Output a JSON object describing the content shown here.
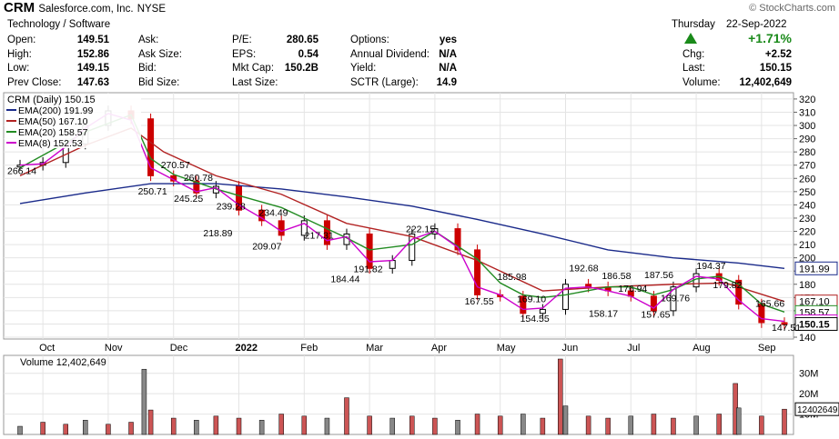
{
  "header": {
    "ticker": "CRM",
    "company": "Salesforce.com, Inc.",
    "exchange": "NYSE",
    "sector": "Technology / Software",
    "watermark": "© StockCharts.com",
    "day": "Thursday",
    "date": "22-Sep-2022",
    "change_pct": "+1.71%",
    "chg_label": "Chg:",
    "chg": "+2.52",
    "last_label": "Last:",
    "last": "150.15",
    "volume_label": "Volume:",
    "volume": "12,402,649",
    "quote": [
      {
        "label": "Open:",
        "value": "149.51"
      },
      {
        "label": "High:",
        "value": "152.86"
      },
      {
        "label": "Low:",
        "value": "149.15"
      },
      {
        "label": "Prev Close:",
        "value": "147.63"
      }
    ],
    "book": [
      {
        "label": "Ask:",
        "value": ""
      },
      {
        "label": "Ask Size:",
        "value": ""
      },
      {
        "label": "Bid:",
        "value": ""
      },
      {
        "label": "Bid Size:",
        "value": ""
      }
    ],
    "fundamentals": [
      {
        "label": "P/E:",
        "value": "280.65"
      },
      {
        "label": "EPS:",
        "value": "0.54"
      },
      {
        "label": "Mkt Cap:",
        "value": "150.2B"
      },
      {
        "label": "Last Size:",
        "value": ""
      }
    ],
    "extra": [
      {
        "label": "Options:",
        "value": "yes"
      },
      {
        "label": "Annual Dividend:",
        "value": "N/A"
      },
      {
        "label": "Yield:",
        "value": "N/A"
      },
      {
        "label": "SCTR (Large):",
        "value": "14.9"
      }
    ]
  },
  "chart_data": {
    "type": "line",
    "title": "CRM (Daily) 150.15",
    "up_color": "#000000",
    "down_color": "#cc0000",
    "price_axis": {
      "ticks": [
        140,
        150,
        160,
        170,
        180,
        190,
        200,
        210,
        220,
        230,
        240,
        250,
        260,
        270,
        280,
        290,
        300,
        310,
        320
      ],
      "ylim": [
        140,
        322
      ]
    },
    "x_months": [
      {
        "label": "Oct",
        "x": 1.35
      },
      {
        "label": "Nov",
        "x": 2.35
      },
      {
        "label": "Dec",
        "x": 3.35
      },
      {
        "label": "2022",
        "x": 4.35
      },
      {
        "label": "Feb",
        "x": 5.35
      },
      {
        "label": "Mar",
        "x": 6.35
      },
      {
        "label": "Apr",
        "x": 7.35
      },
      {
        "label": "May",
        "x": 8.35
      },
      {
        "label": "Jun",
        "x": 9.35
      },
      {
        "label": "Jul",
        "x": 10.35
      },
      {
        "label": "Aug",
        "x": 11.35
      },
      {
        "label": "Sep",
        "x": 12.35
      }
    ],
    "price": {
      "name": "CRM (Daily)",
      "x": [
        1.0,
        1.35,
        1.7,
        2.0,
        2.35,
        2.7,
        3.0,
        3.35,
        3.7,
        4.0,
        4.35,
        4.7,
        5.0,
        5.35,
        5.7,
        6.0,
        6.35,
        6.7,
        7.0,
        7.35,
        7.7,
        8.0,
        8.35,
        8.7,
        9.0,
        9.35,
        9.7,
        10.0,
        10.35,
        10.7,
        11.0,
        11.35,
        11.7,
        12.0,
        12.35,
        12.7
      ],
      "values": [
        270,
        272,
        286,
        300,
        311,
        305,
        262,
        258,
        249,
        254,
        236,
        228,
        217,
        228,
        210,
        218,
        192,
        198,
        218,
        222,
        206,
        172,
        171,
        158,
        161,
        180,
        178,
        175,
        171,
        160,
        178,
        188,
        183,
        165,
        151,
        150
      ]
    },
    "series": [
      {
        "name": "EMA(200)",
        "value_label": "191.99",
        "color": "#1a2a8a",
        "x": [
          1.0,
          2.0,
          3.0,
          4.0,
          5.0,
          6.0,
          7.0,
          8.0,
          9.0,
          10.0,
          11.0,
          12.0,
          12.7
        ],
        "values": [
          241,
          249,
          256,
          256,
          252,
          246,
          239,
          229,
          218,
          206,
          200,
          196,
          192
        ]
      },
      {
        "name": "EMA(50)",
        "value_label": "167.10",
        "color": "#b22222",
        "x": [
          1.0,
          2.0,
          2.7,
          3.2,
          4.0,
          5.0,
          6.0,
          7.0,
          8.0,
          9.0,
          10.0,
          11.0,
          11.8,
          12.7
        ],
        "values": [
          262,
          285,
          298,
          280,
          262,
          248,
          226,
          216,
          198,
          175,
          178,
          180,
          181,
          167
        ]
      },
      {
        "name": "EMA(20)",
        "value_label": "158.57",
        "color": "#228b22",
        "x": [
          1.0,
          2.0,
          2.7,
          3.0,
          3.35,
          4.0,
          4.35,
          5.0,
          5.35,
          6.0,
          6.35,
          7.0,
          7.35,
          8.0,
          8.35,
          8.7,
          9.0,
          9.35,
          10.0,
          10.35,
          10.7,
          11.0,
          11.35,
          11.7,
          12.0,
          12.35,
          12.7
        ],
        "values": [
          268,
          295,
          308,
          275,
          263,
          252,
          247,
          238,
          230,
          215,
          206,
          210,
          220,
          199,
          181,
          172,
          170,
          172,
          178,
          178,
          172,
          176,
          184,
          186,
          180,
          165,
          159
        ]
      },
      {
        "name": "EMA(8)",
        "value_label": "152.53",
        "color": "#cc00cc",
        "x": [
          1.0,
          1.35,
          1.7,
          2.0,
          2.35,
          2.7,
          3.0,
          3.35,
          3.7,
          4.0,
          4.35,
          4.7,
          5.0,
          5.35,
          5.7,
          6.0,
          6.35,
          6.7,
          7.0,
          7.35,
          7.7,
          8.0,
          8.35,
          8.7,
          9.0,
          9.35,
          9.7,
          10.0,
          10.35,
          10.7,
          11.0,
          11.35,
          11.7,
          12.0,
          12.35,
          12.7
        ],
        "values": [
          270,
          271,
          284,
          298,
          309,
          304,
          268,
          259,
          250,
          253,
          240,
          230,
          220,
          226,
          213,
          216,
          197,
          198,
          214,
          220,
          208,
          178,
          172,
          161,
          162,
          177,
          178,
          175,
          171,
          162,
          176,
          186,
          184,
          168,
          154,
          152
        ]
      }
    ],
    "annotations": [
      {
        "text": "266.14",
        "x": 1.0,
        "y": 266.14
      },
      {
        "text": "270.57",
        "x": 3.35,
        "y": 270.57
      },
      {
        "text": "250.71",
        "x": 3.0,
        "y": 250.71
      },
      {
        "text": "260.78",
        "x": 3.7,
        "y": 260.78
      },
      {
        "text": "245.25",
        "x": 3.55,
        "y": 245.25
      },
      {
        "text": "239.28",
        "x": 4.2,
        "y": 239.28
      },
      {
        "text": "218.89",
        "x": 4.0,
        "y": 218.89
      },
      {
        "text": "234.49",
        "x": 4.85,
        "y": 234.49
      },
      {
        "text": "209.07",
        "x": 4.75,
        "y": 209.07
      },
      {
        "text": "217.31",
        "x": 5.55,
        "y": 217.31
      },
      {
        "text": "184.44",
        "x": 5.95,
        "y": 184.44
      },
      {
        "text": "191.82",
        "x": 6.3,
        "y": 191.82
      },
      {
        "text": "222.15",
        "x": 7.1,
        "y": 222.15
      },
      {
        "text": "185.98",
        "x": 8.5,
        "y": 185.98
      },
      {
        "text": "169.10",
        "x": 8.8,
        "y": 169.1
      },
      {
        "text": "167.55",
        "x": 8.0,
        "y": 167.55
      },
      {
        "text": "154.55",
        "x": 8.85,
        "y": 154.55
      },
      {
        "text": "192.68",
        "x": 9.6,
        "y": 192.68
      },
      {
        "text": "186.58",
        "x": 10.1,
        "y": 186.58
      },
      {
        "text": "176.94",
        "x": 10.35,
        "y": 176.94
      },
      {
        "text": "158.17",
        "x": 9.9,
        "y": 158.17
      },
      {
        "text": "187.56",
        "x": 10.75,
        "y": 187.56
      },
      {
        "text": "157.65",
        "x": 10.7,
        "y": 157.65
      },
      {
        "text": "169.76",
        "x": 11.0,
        "y": 169.76
      },
      {
        "text": "194.37",
        "x": 11.55,
        "y": 194.37
      },
      {
        "text": "179.82",
        "x": 11.8,
        "y": 179.82
      },
      {
        "text": "165.66",
        "x": 12.45,
        "y": 165.66
      },
      {
        "text": "147.51",
        "x": 12.7,
        "y": 147.51
      }
    ],
    "volume": {
      "title": "Volume 12,402,649",
      "last_label": "12402649",
      "ticks": [
        {
          "label": "10M",
          "v": 10
        },
        {
          "label": "20M",
          "v": 20
        },
        {
          "label": "30M",
          "v": 30
        }
      ],
      "ylim": [
        0,
        37
      ],
      "x": [
        1.0,
        1.35,
        1.7,
        2.0,
        2.35,
        2.7,
        2.9,
        3.0,
        3.35,
        3.7,
        4.0,
        4.35,
        4.7,
        5.0,
        5.35,
        5.7,
        6.0,
        6.35,
        6.7,
        7.0,
        7.35,
        7.7,
        8.0,
        8.35,
        8.7,
        9.0,
        9.27,
        9.35,
        9.7,
        10.0,
        10.35,
        10.7,
        11.0,
        11.35,
        11.7,
        11.95,
        12.0,
        12.35,
        12.7
      ],
      "values": [
        4,
        6,
        5,
        7,
        5,
        6,
        32,
        12,
        8,
        7,
        9,
        8,
        7,
        10,
        9,
        8,
        18,
        9,
        8,
        9,
        8,
        7,
        10,
        9,
        10,
        8,
        37,
        14,
        9,
        8,
        9,
        10,
        8,
        9,
        10,
        25,
        13,
        9,
        12.4
      ]
    }
  }
}
